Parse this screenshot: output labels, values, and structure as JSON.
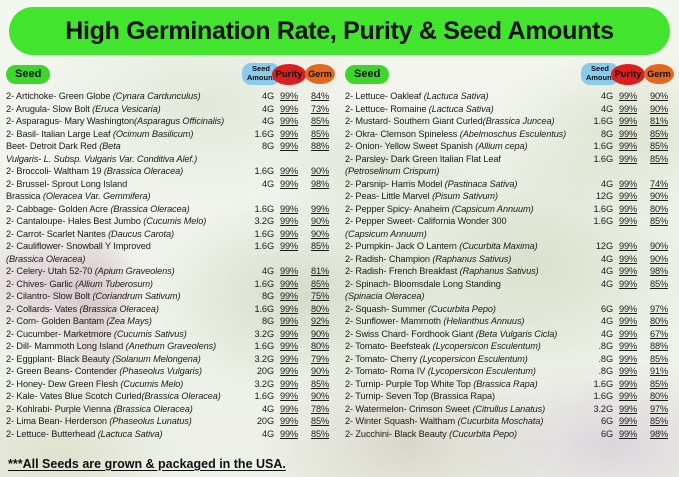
{
  "title": "High Germination Rate, Purity & Seed Amounts",
  "footer": "***All Seeds are grown & packaged in the USA.",
  "header": {
    "seed": "Seed",
    "amount_line1": "Seed",
    "amount_line2": "Amount",
    "purity": "Purity",
    "germ": "Germ"
  },
  "colors": {
    "title_bg": "#43E42D",
    "seed_badge_bg": "#3FD62B",
    "amount_badge_bg": "#8CCAEC",
    "purity_badge_bg": "#DC1F1E",
    "germ_badge_bg": "#E2671F",
    "text": "#1b1b1b"
  },
  "columns": [
    {
      "rows": [
        {
          "name": "2- Artichoke- Green Globe ",
          "species": "(Cynara Cardunculus)",
          "amount": "4G",
          "purity": "99%",
          "germ": "84%"
        },
        {
          "name": "2- Arugula- Slow Bolt ",
          "species": "(Eruca Vesicaria)",
          "amount": "4G",
          "purity": "99%",
          "germ": "73%"
        },
        {
          "name": "2- Asparagus- Mary Washington",
          "species": "(Asparagus Officinalis)",
          "amount": "4G",
          "purity": "99%",
          "germ": "85%"
        },
        {
          "name": "2- Basil- Italian Large Leaf ",
          "species": "(Ocimum Basilicum)",
          "amount": "1.6G",
          "purity": "99%",
          "germ": "85%"
        },
        {
          "name": "Beet- Detroit Dark Red ",
          "species": "(Beta",
          "cont": "",
          "cont_italic": "Vulgaris- L. Subsp. Vulgaris Var. Conditiva Alef.)",
          "amount": "8G",
          "purity": "99%",
          "germ": "88%"
        },
        {
          "name": "2- Broccoli- Waltham 19 ",
          "species": "(Brassica Oleracea)",
          "amount": "1.6G",
          "purity": "99%",
          "germ": "90%"
        },
        {
          "name": "2- Brussel- Sprout Long Island",
          "species": "",
          "cont": "Brassica ",
          "cont_italic": "(Oleracea Var. Gemmifera)",
          "amount": "4G",
          "purity": "99%",
          "germ": "98%"
        },
        {
          "name": "2- Cabbage- Golden Acre ",
          "species": "(Brassica Oleracea)",
          "amount": "1.6G",
          "purity": "99%",
          "germ": "99%"
        },
        {
          "name": "2- Cantaloupe- Hales Best Jumbo ",
          "species": "(Cucumis Melo)",
          "amount": "3.2G",
          "purity": "99%",
          "germ": "90%"
        },
        {
          "name": "2- Carrot- Scarlet Nantes ",
          "species": "(Daucus Carota)",
          "amount": "1.6G",
          "purity": "99%",
          "germ": "90%"
        },
        {
          "name": "2- Cauliflower- Snowball Y Improved",
          "species": "",
          "cont": "",
          "cont_italic": "(Brassica Oleracea)",
          "amount": "1.6G",
          "purity": "99%",
          "germ": "85%"
        },
        {
          "name": "2- Celery- Utah 52-70 ",
          "species": "(Apium Graveolens)",
          "amount": "4G",
          "purity": "99%",
          "germ": "81%"
        },
        {
          "name": "2- Chives- Garlic ",
          "species": "(Allium Tuberosum)",
          "amount": "1.6G",
          "purity": "99%",
          "germ": "85%"
        },
        {
          "name": "2- Cilantro- Slow Bolt ",
          "species": "(Coriandrum Sativum)",
          "amount": "8G",
          "purity": "99%",
          "germ": "75%"
        },
        {
          "name": "2- Collards- Vates ",
          "species": "(Brassica Oleracea)",
          "amount": "1.6G",
          "purity": "99%",
          "germ": "80%"
        },
        {
          "name": "2- Corn- Golden Bantam ",
          "species": "(Zea Mays)",
          "amount": "8G",
          "purity": "99%",
          "germ": "92%"
        },
        {
          "name": "2- Cucumber- Marketmore ",
          "species": "(Cucumis Sativus)",
          "amount": "3.2G",
          "purity": "99%",
          "germ": "90%"
        },
        {
          "name": "2- Dill- Mammoth Long Island ",
          "species": "(Anethum Graveolens)",
          "amount": "1.6G",
          "purity": "99%",
          "germ": "80%"
        },
        {
          "name": "2- Eggplant- Black Beauty ",
          "species": "(Solanum Melongena)",
          "amount": "3.2G",
          "purity": "99%",
          "germ": "79%"
        },
        {
          "name": "2- Green Beans- Contender ",
          "species": "(Phaseolus Vulgaris)",
          "amount": "20G",
          "purity": "99%",
          "germ": "90%"
        },
        {
          "name": "2- Honey- Dew Green Flesh ",
          "species": "(Cucumis Melo)",
          "amount": "3.2G",
          "purity": "99%",
          "germ": "85%"
        },
        {
          "name": "2- Kale- Vates Blue Scotch Curled",
          "species": "(Brassica Oleracea)",
          "amount": "1.6G",
          "purity": "99%",
          "germ": "90%"
        },
        {
          "name": "2- Kohlrabi- Purple Vienna ",
          "species": "(Brassica Oleracea)",
          "amount": "4G",
          "purity": "99%",
          "germ": "78%"
        },
        {
          "name": "2- Lima Bean- Herderson ",
          "species": "(Phaseolus Lunatus)",
          "amount": "20G",
          "purity": "99%",
          "germ": "85%"
        },
        {
          "name": "2- Lettuce- Butterhead ",
          "species": "(Lactuca Sativa)",
          "amount": "4G",
          "purity": "99%",
          "germ": "85%"
        }
      ]
    },
    {
      "rows": [
        {
          "name": "2- Lettuce- Oakleaf ",
          "species": "(Lactuca Sativa)",
          "amount": "4G",
          "purity": "99%",
          "germ": "90%"
        },
        {
          "name": "2- Lettuce- Romaine ",
          "species": "(Lactuca Sativa)",
          "amount": "4G",
          "purity": "99%",
          "germ": "90%"
        },
        {
          "name": "2- Mustard- Southern Giant Curled",
          "species": "(Brassica Juncea)",
          "amount": "1.6G",
          "purity": "99%",
          "germ": "81%"
        },
        {
          "name": "2- Okra- Clemson Spineless ",
          "species": "(Abelmoschus Esculentus)",
          "amount": "8G",
          "purity": "99%",
          "germ": "85%"
        },
        {
          "name": "2- Onion- Yellow Sweet Spanish ",
          "species": "(Allium cepa)",
          "amount": "1.6G",
          "purity": "99%",
          "germ": "85%"
        },
        {
          "name": "2- Parsley- Dark Green Italian Flat Leaf",
          "species": "",
          "cont": "",
          "cont_italic": "(Petroselinum Crispum)",
          "amount": "1.6G",
          "purity": "99%",
          "germ": "85%"
        },
        {
          "name": "2- Parsnip- Harris Model ",
          "species": "(Pastinaca Sativa)",
          "amount": "4G",
          "purity": "99%",
          "germ": "74%"
        },
        {
          "name": "2- Peas- Little Marvel ",
          "species": "(Pisum Sativum)",
          "amount": "12G",
          "purity": "99%",
          "germ": "90%"
        },
        {
          "name": "2- Pepper Spicy- Anaheim ",
          "species": "(Capsicum Annuum)",
          "amount": "1.6G",
          "purity": "99%",
          "germ": "80%"
        },
        {
          "name": "2- Pepper Sweet- California Wonder 300",
          "species": "",
          "cont": "",
          "cont_italic": "(Capsicum Annuum)",
          "amount": "1.6G",
          "purity": "99%",
          "germ": "85%"
        },
        {
          "name": "2- Pumpkin- Jack O Lantern ",
          "species": "(Cucurbita Maxima)",
          "amount": "12G",
          "purity": "99%",
          "germ": "90%"
        },
        {
          "name": "2- Radish- Champion ",
          "species": "(Raphanus Sativus)",
          "amount": "4G",
          "purity": "99%",
          "germ": "90%"
        },
        {
          "name": "2- Radish- French Breakfast ",
          "species": "(Raphanus Sativus)",
          "amount": "4G",
          "purity": "99%",
          "germ": "98%"
        },
        {
          "name": "2- Spinach- Bloomsdale Long Standing",
          "species": "",
          "cont": "",
          "cont_italic": "(Spinacia Oleracea)",
          "amount": "4G",
          "purity": "99%",
          "germ": "85%"
        },
        {
          "name": "2- Squash- Summer ",
          "species": "(Cucurbita Pepo)",
          "amount": "6G",
          "purity": "99%",
          "germ": "97%"
        },
        {
          "name": "2- Sunflower- Mammoth ",
          "species": "(Helianthus Annuus)",
          "amount": "4G",
          "purity": "99%",
          "germ": "80%"
        },
        {
          "name": "2- Swiss Chard- Fordhook Giant ",
          "species": "(Beta Vulgaris Cicla)",
          "amount": "4G",
          "purity": "99%",
          "germ": "67%"
        },
        {
          "name": "2- Tomato- Beefsteak ",
          "species": "(Lycopersicon Esculentum)",
          "amount": ".8G",
          "purity": "99%",
          "germ": "88%"
        },
        {
          "name": "2- Tomato- Cherry ",
          "species": "(Lycopersicon Esculentum)",
          "amount": ".8G",
          "purity": "99%",
          "germ": "85%"
        },
        {
          "name": "2- Tomato- Roma IV ",
          "species": "(Lycopersicon Esculentum)",
          "amount": ".8G",
          "purity": "99%",
          "germ": "91%"
        },
        {
          "name": "2- Turnip- Purple Top White Top ",
          "species": "(Brassica Rapa)",
          "amount": "1.6G",
          "purity": "99%",
          "germ": "85%"
        },
        {
          "name": "2- Turnip- Seven Top (Brassica Rapa)",
          "species": "",
          "amount": "1.6G",
          "purity": "99%",
          "germ": "80%"
        },
        {
          "name": "2- Watermelon- Crimson Sweet ",
          "species": "(Citrullus Lanatus)",
          "amount": "3.2G",
          "purity": "99%",
          "germ": "97%"
        },
        {
          "name": "2- Winter Squash- Waltham ",
          "species": "(Cucurbita Moschata)",
          "amount": "6G",
          "purity": "99%",
          "germ": "85%"
        },
        {
          "name": "2- Zucchini- Black Beauty ",
          "species": "(Cucurbita Pepo)",
          "amount": "6G",
          "purity": "99%",
          "germ": "98%"
        }
      ]
    }
  ]
}
